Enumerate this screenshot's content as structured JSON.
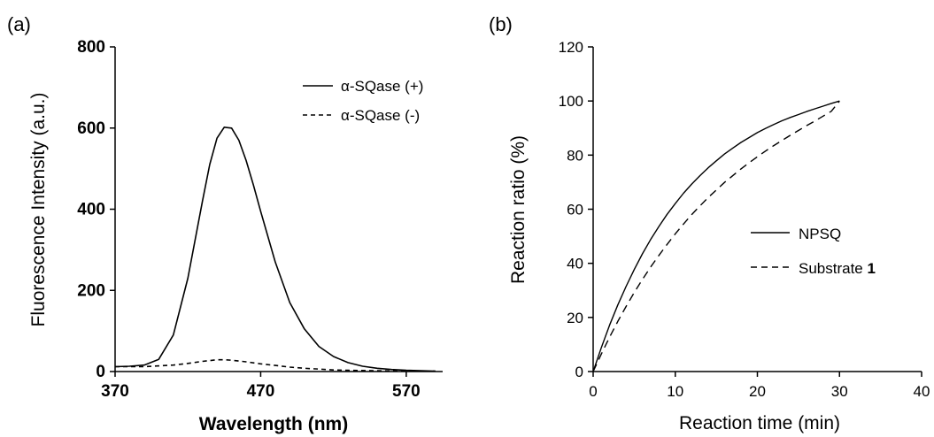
{
  "chart_data": [
    {
      "panel_label": "(a)",
      "type": "line",
      "xlabel": "Wavelength (nm)",
      "ylabel": "Fluorescence Intensity (a.u.)",
      "xlim": [
        370,
        595
      ],
      "ylim": [
        0,
        800
      ],
      "xticks": [
        370,
        470,
        570
      ],
      "yticks": [
        0,
        200,
        400,
        600,
        800
      ],
      "legend_position": "top-right",
      "series": [
        {
          "name": "α-SQase (+)",
          "style": "solid",
          "x": [
            370,
            380,
            390,
            400,
            410,
            420,
            430,
            435,
            440,
            445,
            450,
            455,
            460,
            465,
            470,
            480,
            490,
            500,
            510,
            520,
            530,
            540,
            550,
            560,
            570,
            580,
            590
          ],
          "y": [
            12,
            13,
            16,
            30,
            90,
            230,
            420,
            510,
            575,
            602,
            600,
            570,
            520,
            460,
            395,
            270,
            170,
            105,
            62,
            37,
            22,
            13,
            8,
            5,
            3,
            2,
            1
          ]
        },
        {
          "name": "α-SQase (-)",
          "style": "dashed",
          "x": [
            370,
            390,
            410,
            420,
            430,
            440,
            445,
            450,
            460,
            470,
            480,
            490,
            500,
            510,
            520,
            530,
            550,
            570,
            590
          ],
          "y": [
            12,
            12,
            16,
            20,
            25,
            29,
            29,
            28,
            24,
            19,
            15,
            11,
            8,
            6,
            4,
            3,
            2,
            1,
            1
          ]
        }
      ]
    },
    {
      "panel_label": "(b)",
      "type": "line",
      "xlabel": "Reaction time (min)",
      "ylabel": "Reaction ratio (%)",
      "xlim": [
        0,
        40
      ],
      "ylim": [
        0,
        120
      ],
      "xticks": [
        0,
        10,
        20,
        30,
        40
      ],
      "yticks": [
        0,
        20,
        40,
        60,
        80,
        100,
        120
      ],
      "legend_position": "center-right",
      "series": [
        {
          "name": "NPSQ",
          "style": "solid",
          "x": [
            0,
            1,
            2,
            3,
            4,
            5,
            6,
            7,
            8,
            9,
            10,
            11,
            12,
            13,
            14,
            15,
            16,
            17,
            18,
            19,
            20,
            21,
            22,
            23,
            24,
            25,
            26,
            27,
            28,
            29,
            30
          ],
          "y": [
            0,
            8.9,
            17.1,
            24.6,
            31.4,
            37.7,
            43.5,
            48.8,
            53.6,
            58.1,
            62.1,
            65.9,
            69.3,
            72.4,
            75.3,
            77.9,
            80.4,
            82.6,
            84.7,
            86.5,
            88.3,
            89.9,
            91.3,
            92.7,
            93.9,
            95.0,
            96.1,
            97.1,
            98.1,
            99.1,
            100
          ]
        },
        {
          "name_prefix": "Substrate ",
          "name_bold": "1",
          "style": "dashed",
          "x": [
            0,
            1,
            2,
            3,
            4,
            5,
            6,
            7,
            8,
            9,
            10,
            11,
            12,
            13,
            14,
            15,
            16,
            17,
            18,
            19,
            20,
            21,
            22,
            23,
            24,
            25,
            26,
            27,
            28,
            29,
            30
          ],
          "y": [
            0,
            6.5,
            12.7,
            18.5,
            24.0,
            29.2,
            34.0,
            38.6,
            42.9,
            47.0,
            50.9,
            54.5,
            58.0,
            61.2,
            64.3,
            67.1,
            69.9,
            72.4,
            74.9,
            77.2,
            79.4,
            81.5,
            83.5,
            85.4,
            87.3,
            89.1,
            90.9,
            92.6,
            94.4,
            96.2,
            100
          ]
        }
      ]
    }
  ]
}
